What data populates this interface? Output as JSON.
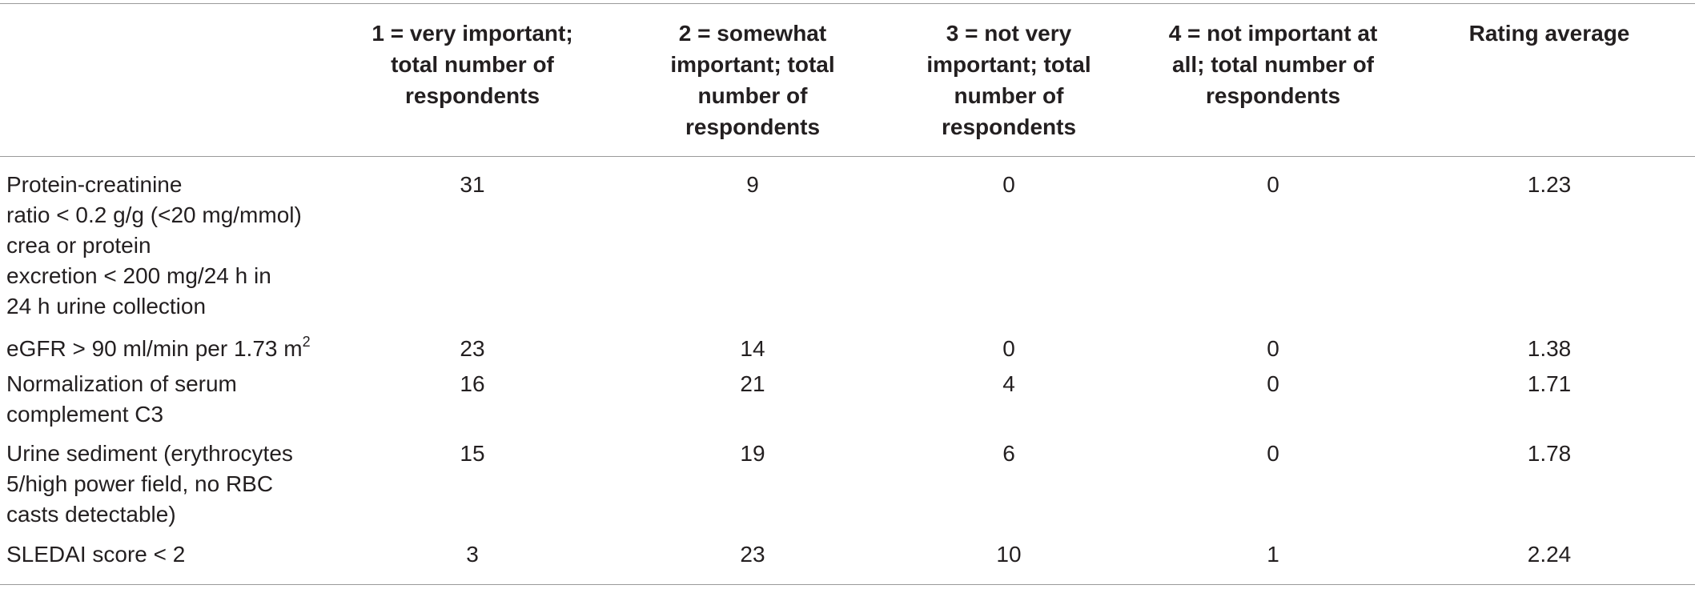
{
  "table": {
    "headers": [
      "",
      "1 = very important;\ntotal number of\nrespondents",
      "2 = somewhat\nimportant; total\nnumber of\nrespondents",
      "3 = not very\nimportant; total\nnumber of\nrespondents",
      "4 = not important at\nall; total number of\nrespondents",
      "Rating average"
    ],
    "rows": [
      {
        "label": "Protein-creatinine\nratio < 0.2 g/g (<20 mg/mmol)\ncrea or protein\nexcretion < 200 mg/24 h in\n24 h urine collection",
        "values": [
          "31",
          "9",
          "0",
          "0",
          "1.23"
        ]
      },
      {
        "label": "eGFR > 90 ml/min per 1.73 m",
        "label_sup": "2",
        "values": [
          "23",
          "14",
          "0",
          "0",
          "1.38"
        ]
      },
      {
        "label": "Normalization of serum\ncomplement C3",
        "values": [
          "16",
          "21",
          "4",
          "0",
          "1.71"
        ]
      },
      {
        "label": "Urine sediment (erythrocytes\n5/high power field, no RBC\ncasts detectable)",
        "values": [
          "15",
          "19",
          "6",
          "0",
          "1.78"
        ]
      },
      {
        "label": "SLEDAI score < 2",
        "values": [
          "3",
          "23",
          "10",
          "1",
          "2.24"
        ]
      }
    ]
  }
}
